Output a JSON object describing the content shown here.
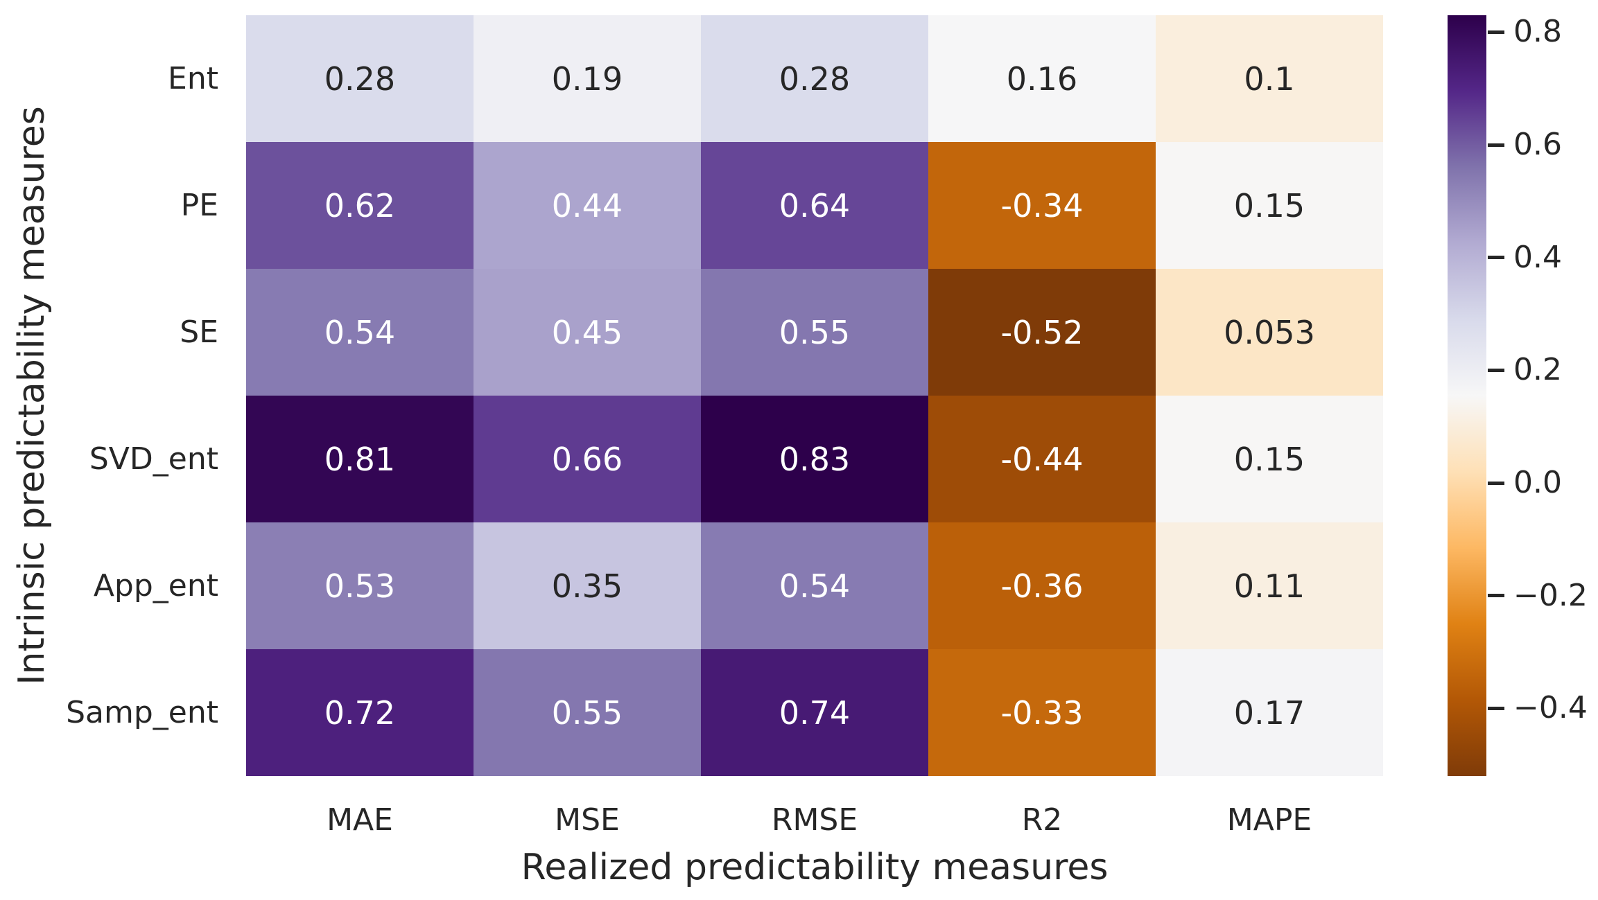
{
  "chart_data": {
    "type": "heatmap",
    "xlabel": "Realized predictability measures",
    "ylabel": "Intrinsic predictability measures",
    "columns": [
      "MAE",
      "MSE",
      "RMSE",
      "R2",
      "MAPE"
    ],
    "rows": [
      "Ent",
      "PE",
      "SE",
      "SVD_ent",
      "App_ent",
      "Samp_ent"
    ],
    "values": [
      [
        0.28,
        0.19,
        0.28,
        0.16,
        0.1
      ],
      [
        0.62,
        0.44,
        0.64,
        -0.34,
        0.15
      ],
      [
        0.54,
        0.45,
        0.55,
        -0.52,
        0.053
      ],
      [
        0.81,
        0.66,
        0.83,
        -0.44,
        0.15
      ],
      [
        0.53,
        0.35,
        0.54,
        -0.36,
        0.11
      ],
      [
        0.72,
        0.55,
        0.74,
        -0.33,
        0.17
      ]
    ],
    "annotations": [
      [
        "0.28",
        "0.19",
        "0.28",
        "0.16",
        "0.1"
      ],
      [
        "0.62",
        "0.44",
        "0.64",
        "-0.34",
        "0.15"
      ],
      [
        "0.54",
        "0.45",
        "0.55",
        "-0.52",
        "0.053"
      ],
      [
        "0.81",
        "0.66",
        "0.83",
        "-0.44",
        "0.15"
      ],
      [
        "0.53",
        "0.35",
        "0.54",
        "-0.36",
        "0.11"
      ],
      [
        "0.72",
        "0.55",
        "0.74",
        "-0.33",
        "0.17"
      ]
    ],
    "vmin": -0.52,
    "vmax": 0.83,
    "colormap": {
      "name": "PuOr",
      "stops": [
        "#7f3b08",
        "#b35806",
        "#e08214",
        "#fdb863",
        "#fee0b6",
        "#f7f7f7",
        "#d8daeb",
        "#b2abd2",
        "#8073ac",
        "#542788",
        "#2d004b"
      ]
    },
    "colorbar": {
      "position": "right",
      "tick_labels": [
        "0.8",
        "0.6",
        "0.4",
        "0.2",
        "0.0",
        "−0.2",
        "−0.4"
      ],
      "tick_values": [
        0.8,
        0.6,
        0.4,
        0.2,
        0.0,
        -0.2,
        -0.4
      ]
    },
    "grid": false,
    "annotation_text_dark": "#262626",
    "annotation_text_light": "#ffffff"
  }
}
